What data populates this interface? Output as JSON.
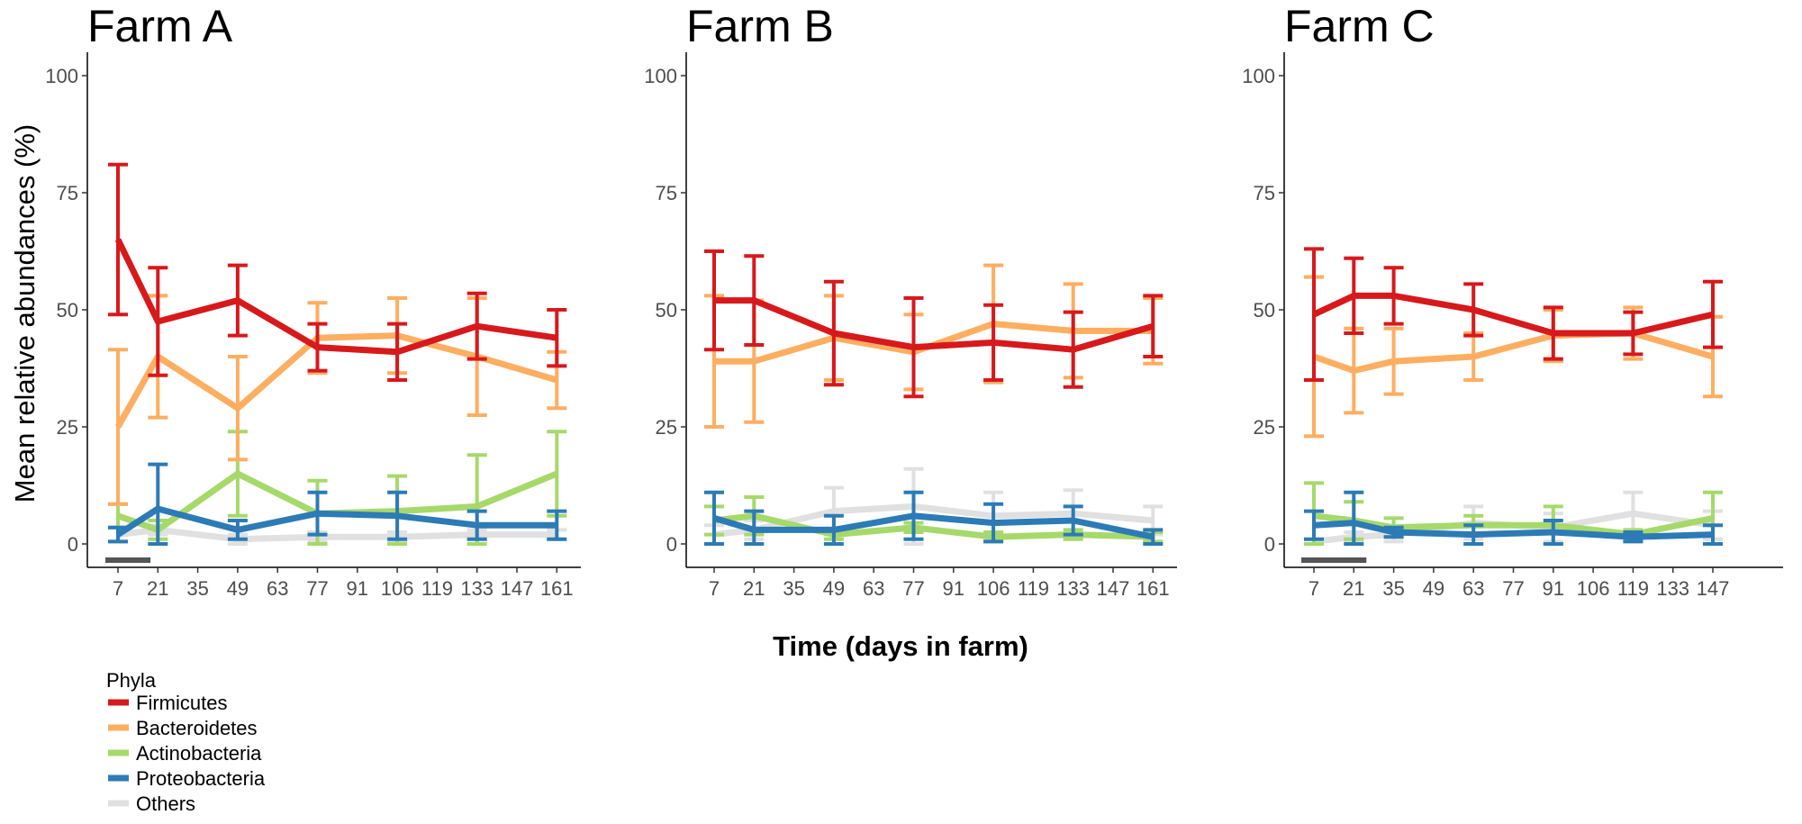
{
  "chart_data": [
    {
      "type": "line",
      "title": "Farm A",
      "ylabel": "Mean relative abundances (%)",
      "xlabel": "Time (days in farm)",
      "ylim": [
        0,
        100
      ],
      "yticks": [
        0,
        25,
        50,
        75,
        100
      ],
      "xticks": [
        "7",
        "21",
        "35",
        "49",
        "63",
        "77",
        "91",
        "106",
        "119",
        "133",
        "147",
        "161"
      ],
      "series": [
        {
          "name": "Others",
          "x": [
            "7",
            "21",
            "49",
            "77",
            "106",
            "133",
            "161"
          ],
          "values": [
            2,
            3,
            1,
            1.5,
            1.5,
            2,
            2
          ],
          "err": [
            1.5,
            1,
            1,
            1,
            1,
            1,
            1
          ]
        },
        {
          "name": "Actinobacteria",
          "x": [
            "7",
            "21",
            "49",
            "77",
            "106",
            "133",
            "161"
          ],
          "values": [
            6,
            3,
            15,
            6.5,
            7,
            8,
            15
          ],
          "err": [
            2.5,
            2,
            9,
            7,
            7.5,
            11,
            9
          ]
        },
        {
          "name": "Proteobacteria",
          "x": [
            "7",
            "21",
            "49",
            "77",
            "106",
            "133",
            "161"
          ],
          "values": [
            2,
            7.5,
            3,
            6.5,
            6,
            4,
            4
          ],
          "err": [
            1.5,
            9.5,
            2,
            4.5,
            5,
            3,
            3
          ]
        },
        {
          "name": "Bacteroidetes",
          "x": [
            "7",
            "21",
            "49",
            "77",
            "106",
            "133",
            "161"
          ],
          "values": [
            25,
            40,
            29,
            44,
            44.5,
            40,
            35
          ],
          "err": [
            16.5,
            13,
            11,
            7.5,
            8,
            12.5,
            6
          ]
        },
        {
          "name": "Firmicutes",
          "x": [
            "7",
            "21",
            "49",
            "77",
            "106",
            "133",
            "161"
          ],
          "values": [
            65,
            47.5,
            52,
            42,
            41,
            46.5,
            44
          ],
          "err": [
            16,
            11.5,
            7.5,
            5,
            6,
            7,
            6
          ]
        }
      ],
      "marks": [
        {
          "x": "7",
          "gap_after": "14"
        },
        {
          "x": "14"
        }
      ]
    },
    {
      "type": "line",
      "title": "Farm B",
      "ylim": [
        0,
        100
      ],
      "yticks": [
        0,
        25,
        50,
        75,
        100
      ],
      "xticks": [
        "7",
        "21",
        "35",
        "49",
        "63",
        "77",
        "91",
        "106",
        "119",
        "133",
        "147",
        "161"
      ],
      "series": [
        {
          "name": "Others",
          "x": [
            "7",
            "21",
            "49",
            "77",
            "106",
            "133",
            "161"
          ],
          "values": [
            2,
            3,
            7,
            8,
            6,
            6.5,
            5
          ],
          "err": [
            2,
            2,
            5,
            8,
            5,
            5,
            3
          ]
        },
        {
          "name": "Actinobacteria",
          "x": [
            "7",
            "21",
            "49",
            "77",
            "106",
            "133",
            "161"
          ],
          "values": [
            5,
            6,
            2,
            3.5,
            1.5,
            2,
            1.5
          ],
          "err": [
            3,
            4,
            1,
            1,
            1,
            1,
            1
          ]
        },
        {
          "name": "Proteobacteria",
          "x": [
            "7",
            "21",
            "49",
            "77",
            "106",
            "133",
            "161"
          ],
          "values": [
            5.5,
            3,
            3,
            6,
            4.5,
            5,
            1.5
          ],
          "err": [
            5.5,
            4,
            3,
            5,
            4,
            3,
            1.5
          ]
        },
        {
          "name": "Bacteroidetes",
          "x": [
            "7",
            "21",
            "49",
            "77",
            "106",
            "133",
            "161"
          ],
          "values": [
            39,
            39,
            44,
            41,
            47,
            45.5,
            45.5
          ],
          "err": [
            14,
            13,
            9,
            8,
            12.5,
            10,
            7
          ]
        },
        {
          "name": "Firmicutes",
          "x": [
            "7",
            "21",
            "49",
            "77",
            "106",
            "133",
            "161"
          ],
          "values": [
            52,
            52,
            45,
            42,
            43,
            41.5,
            46.5
          ],
          "err": [
            10.5,
            9.5,
            11,
            10.5,
            8,
            8,
            6.5
          ]
        }
      ]
    },
    {
      "type": "line",
      "title": "Farm C",
      "ylim": [
        0,
        100
      ],
      "yticks": [
        0,
        25,
        50,
        75,
        100
      ],
      "xticks": [
        "7",
        "21",
        "35",
        "49",
        "63",
        "77",
        "91",
        "106",
        "119",
        "133",
        "147"
      ],
      "series": [
        {
          "name": "Others",
          "x": [
            "7",
            "21",
            "35",
            "63",
            "91",
            "119",
            "147"
          ],
          "values": [
            0.5,
            1.5,
            2,
            4.5,
            3.5,
            6.5,
            4
          ],
          "err": [
            0.5,
            1,
            1.5,
            3.5,
            3,
            4.5,
            3
          ]
        },
        {
          "name": "Actinobacteria",
          "x": [
            "7",
            "21",
            "35",
            "63",
            "91",
            "119",
            "147"
          ],
          "values": [
            6,
            5,
            3.5,
            4,
            4,
            2,
            5.5
          ],
          "err": [
            7,
            4,
            2,
            2,
            4,
            1,
            5.5
          ]
        },
        {
          "name": "Proteobacteria",
          "x": [
            "7",
            "21",
            "35",
            "63",
            "91",
            "119",
            "147"
          ],
          "values": [
            4,
            4.5,
            2.5,
            2,
            2.5,
            1.5,
            2
          ],
          "err": [
            3,
            6.5,
            1,
            2,
            2.5,
            1,
            2
          ]
        },
        {
          "name": "Bacteroidetes",
          "x": [
            "7",
            "21",
            "35",
            "63",
            "91",
            "119",
            "147"
          ],
          "values": [
            40,
            37,
            39,
            40,
            44.5,
            45,
            40
          ],
          "err": [
            17,
            9,
            7,
            5,
            5.5,
            5.5,
            8.5
          ]
        },
        {
          "name": "Firmicutes",
          "x": [
            "7",
            "21",
            "35",
            "63",
            "91",
            "119",
            "147"
          ],
          "values": [
            49,
            53,
            53,
            50,
            45,
            45,
            49
          ],
          "err": [
            14,
            8,
            6,
            5.5,
            5.5,
            4.5,
            7
          ]
        }
      ],
      "marks": [
        {
          "x": "7"
        },
        {
          "x": "14"
        },
        {
          "x": "21"
        }
      ]
    }
  ],
  "legend": {
    "title": "Phyla",
    "items": [
      {
        "label": "Firmicutes",
        "color": "#d7191c"
      },
      {
        "label": "Bacteroidetes",
        "color": "#fdae61"
      },
      {
        "label": "Actinobacteria",
        "color": "#a6d96a"
      },
      {
        "label": "Proteobacteria",
        "color": "#2c7bb6"
      },
      {
        "label": "Others",
        "color": "#e0e0e0"
      }
    ]
  },
  "colors": {
    "Firmicutes": "#d7191c",
    "Bacteroidetes": "#fdae61",
    "Actinobacteria": "#a6d96a",
    "Proteobacteria": "#2c7bb6",
    "Others": "#e0e0e0",
    "marks": "#555555"
  }
}
